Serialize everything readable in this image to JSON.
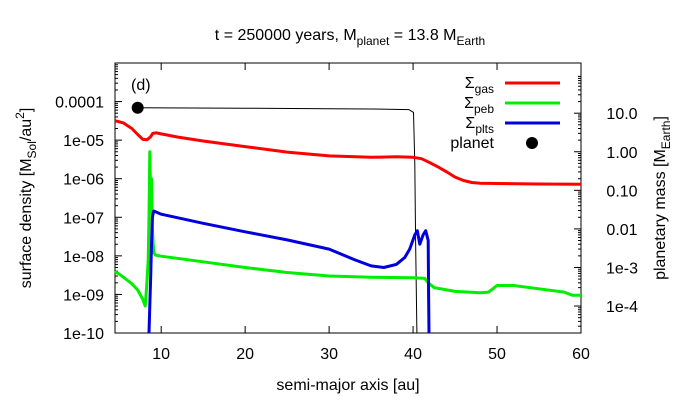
{
  "chart_data": {
    "type": "line",
    "title": {
      "t_label": "t = 250000 years, M",
      "planet_sub": "planet",
      "equals": " = 13.8 M",
      "earth_sub": "Earth"
    },
    "xlabel": "semi-major axis [au]",
    "ylabel_left": {
      "main": "surface density [M",
      "sub": "Sol",
      "unit": "/au",
      "sup": "2",
      "close": "]"
    },
    "ylabel_right": {
      "main": "planetary mass [M",
      "sub": "Earth",
      "close": "]"
    },
    "panel_label": "(d)",
    "xlim": [
      4.5,
      60
    ],
    "ylim_left": [
      1e-10,
      0.001
    ],
    "ylim_right": [
      2e-05,
      200
    ],
    "x_ticks": [
      {
        "value": 10,
        "label": "10"
      },
      {
        "value": 20,
        "label": "20"
      },
      {
        "value": 30,
        "label": "30"
      },
      {
        "value": 40,
        "label": "40"
      },
      {
        "value": 50,
        "label": "50"
      },
      {
        "value": 60,
        "label": "60"
      }
    ],
    "y_ticks_left": [
      {
        "value": 0.0001,
        "label": "0.0001"
      },
      {
        "value": 1e-05,
        "label": "1e-05"
      },
      {
        "value": 1e-06,
        "label": "1e-06"
      },
      {
        "value": 1e-07,
        "label": "1e-07"
      },
      {
        "value": 1e-08,
        "label": "1e-08"
      },
      {
        "value": 1e-09,
        "label": "1e-09"
      },
      {
        "value": 1e-10,
        "label": "1e-10"
      }
    ],
    "y_ticks_right": [
      {
        "value": 10,
        "label": "10.0"
      },
      {
        "value": 1,
        "label": "1.00"
      },
      {
        "value": 0.1,
        "label": "0.10"
      },
      {
        "value": 0.01,
        "label": "0.01"
      },
      {
        "value": 0.001,
        "label": "1e-3"
      },
      {
        "value": 0.0001,
        "label": "1e-4"
      }
    ],
    "legend": [
      {
        "key": "gas",
        "symbol": "Σ",
        "sub": "gas",
        "color": "#ff0000",
        "marker": "line"
      },
      {
        "key": "peb",
        "symbol": "Σ",
        "sub": "peb",
        "color": "#00ee00",
        "marker": "line"
      },
      {
        "key": "plts",
        "symbol": "Σ",
        "sub": "plts",
        "color": "#0000dd",
        "marker": "line"
      },
      {
        "key": "planet",
        "symbol": "planet",
        "sub": "",
        "color": "#000000",
        "marker": "dot"
      }
    ],
    "series": [
      {
        "name": "gas",
        "axis": "left",
        "color": "#ff0000",
        "x": [
          4.5,
          5.5,
          6.5,
          7.2,
          7.8,
          8.3,
          8.7,
          9.0,
          9.4,
          10,
          12,
          15,
          20,
          25,
          30,
          35,
          38,
          40,
          41,
          42,
          43,
          44,
          45,
          46,
          47,
          48,
          50,
          55,
          60
        ],
        "y": [
          3.2e-05,
          2.8e-05,
          2e-05,
          1.4e-05,
          1.05e-05,
          1.02e-05,
          1.2e-05,
          1.5e-05,
          1.55e-05,
          1.45e-05,
          1.2e-05,
          9.5e-06,
          6.8e-06,
          4.9e-06,
          3.9e-06,
          3.6e-06,
          3.7e-06,
          3.6e-06,
          3.3e-06,
          2.6e-06,
          2e-06,
          1.5e-06,
          1.1e-06,
          9e-07,
          8e-07,
          7.6e-07,
          7.5e-07,
          7.3e-07,
          7.2e-07
        ]
      },
      {
        "name": "peb",
        "axis": "left",
        "color": "#00ee00",
        "x": [
          4.5,
          5.5,
          6.5,
          7.2,
          7.8,
          8.1,
          8.3,
          8.45,
          8.55,
          8.65,
          8.75,
          8.85,
          8.95,
          9.05,
          9.15,
          9.3,
          10,
          15,
          20,
          25,
          30,
          35,
          40,
          41.4,
          41.8,
          42.5,
          45,
          48,
          49,
          50,
          52,
          55,
          58,
          59,
          60
        ],
        "y": [
          4e-09,
          2.8e-09,
          1.9e-09,
          1.3e-09,
          7.5e-10,
          5e-10,
          2e-09,
          8e-09,
          1e-07,
          5e-06,
          3e-07,
          1e-06,
          5e-08,
          2e-08,
          1.2e-08,
          1.05e-08,
          9.8e-09,
          7e-09,
          5e-09,
          3.7e-09,
          3e-09,
          2.8e-09,
          2.7e-09,
          2.6e-09,
          2e-09,
          1.5e-09,
          1.2e-09,
          1.1e-09,
          1.15e-09,
          1.7e-09,
          1.7e-09,
          1.4e-09,
          1.15e-09,
          9.5e-10,
          9.5e-10
        ]
      },
      {
        "name": "plts",
        "axis": "left",
        "color": "#0000dd",
        "x": [
          8.55,
          8.65,
          8.75,
          8.85,
          8.95,
          9.1,
          9.3,
          10,
          15,
          20,
          25,
          30,
          33,
          35,
          36.5,
          38,
          39,
          39.6,
          40.2,
          40.5,
          40.8,
          41.2,
          41.5,
          41.8,
          41.85,
          41.9
        ],
        "y": [
          1e-10,
          5e-10,
          3e-09,
          2e-08,
          1e-07,
          1.45e-07,
          1.4e-07,
          1.2e-07,
          7e-08,
          4.2e-08,
          2.6e-08,
          1.5e-08,
          8e-09,
          5.5e-09,
          5e-09,
          6e-09,
          9e-09,
          1.5e-08,
          3.5e-08,
          4.5e-08,
          2e-08,
          3.5e-08,
          4.5e-08,
          2.5e-08,
          1e-09,
          1e-10
        ]
      },
      {
        "name": "planet mass track",
        "axis": "right",
        "color": "#000000",
        "x": [
          7.2,
          20,
          30,
          35,
          39.5,
          40.05,
          40.2,
          40.3,
          40.45
        ],
        "y": [
          13.8,
          13.5,
          13.0,
          12.8,
          12.4,
          10.5,
          0.5,
          0.005,
          2e-05
        ]
      }
    ],
    "planet_point": {
      "x": 7.2,
      "y_mass": 13.8
    }
  }
}
